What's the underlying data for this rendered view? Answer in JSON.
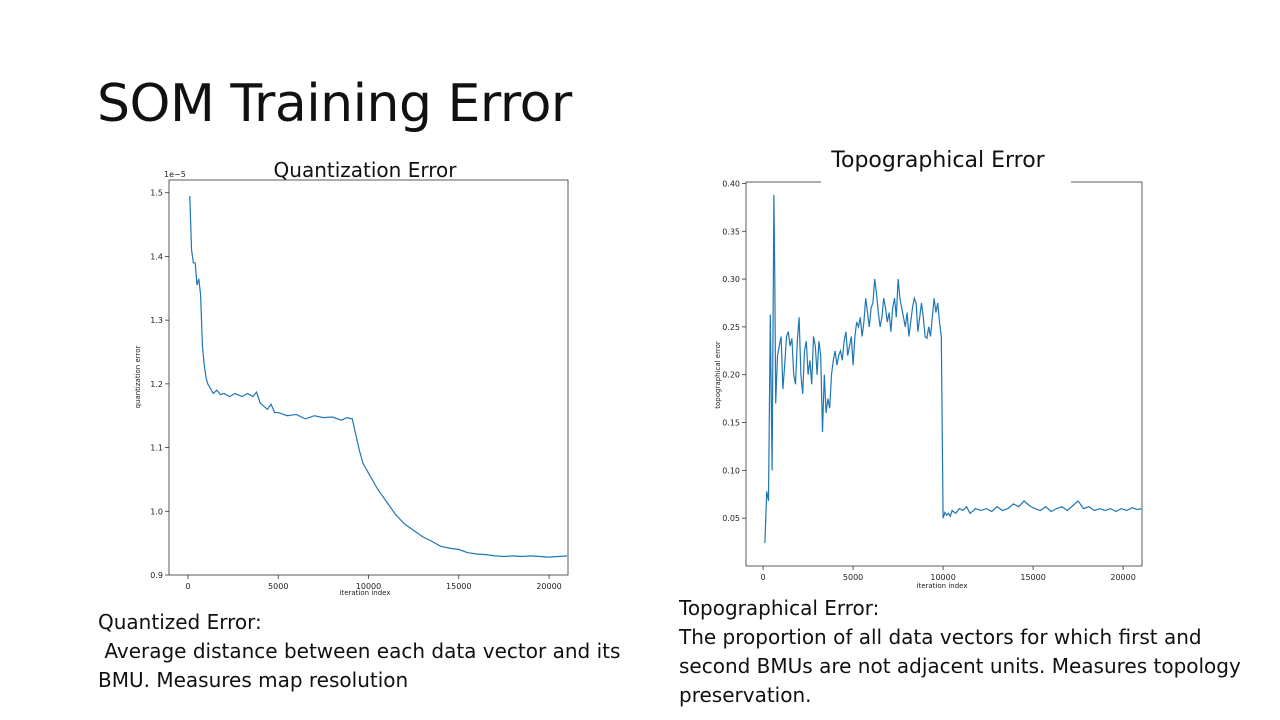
{
  "slide": {
    "title": "SOM Training Error"
  },
  "captions": {
    "left": {
      "heading": "Quantized Error:",
      "body": " Average distance between each data vector and its BMU. Measures map resolution"
    },
    "right": {
      "heading": "Topographical Error:",
      "body": "The proportion of all data vectors for which first and second BMUs are not adjacent units. Measures topology preservation."
    }
  },
  "chart_data": [
    {
      "type": "line",
      "title": "Quantization Error",
      "xlabel": "iteration index",
      "ylabel": "quantization error",
      "y_offset_label": "1e−5",
      "xlim": [
        -1050,
        21050
      ],
      "ylim": [
        0.9,
        1.52
      ],
      "xticks": [
        0,
        5000,
        10000,
        15000,
        20000
      ],
      "yticks": [
        0.9,
        1.0,
        1.1,
        1.2,
        1.3,
        1.4,
        1.5
      ],
      "ytick_labels": [
        "0.9",
        "1.0",
        "1.1",
        "1.2",
        "1.3",
        "1.4",
        "1.5"
      ],
      "grid": false,
      "line_color": "#1f77b4",
      "series": [
        {
          "x": [
            100,
            200,
            300,
            400,
            500,
            600,
            700,
            800,
            900,
            1000,
            1100,
            1200,
            1400,
            1600,
            1800,
            2000,
            2300,
            2600,
            3000,
            3300,
            3600,
            3800,
            4000,
            4200,
            4400,
            4600,
            4800,
            5000,
            5500,
            6000,
            6500,
            7000,
            7500,
            8000,
            8500,
            8800,
            9100,
            9300,
            9500,
            9700,
            10000,
            10500,
            11000,
            11500,
            12000,
            12500,
            13000,
            13500,
            14000,
            14500,
            15000,
            15500,
            16000,
            16500,
            17000,
            17500,
            18000,
            18500,
            19000,
            19500,
            20000,
            20500,
            21000
          ],
          "y": [
            1.495,
            1.41,
            1.39,
            1.39,
            1.355,
            1.365,
            1.34,
            1.26,
            1.23,
            1.21,
            1.2,
            1.195,
            1.185,
            1.19,
            1.183,
            1.185,
            1.18,
            1.185,
            1.18,
            1.185,
            1.18,
            1.187,
            1.17,
            1.165,
            1.16,
            1.168,
            1.155,
            1.155,
            1.15,
            1.152,
            1.145,
            1.15,
            1.147,
            1.148,
            1.143,
            1.147,
            1.145,
            1.12,
            1.095,
            1.075,
            1.06,
            1.035,
            1.015,
            0.995,
            0.98,
            0.97,
            0.96,
            0.953,
            0.945,
            0.942,
            0.94,
            0.935,
            0.933,
            0.932,
            0.93,
            0.929,
            0.93,
            0.929,
            0.93,
            0.929,
            0.928,
            0.929,
            0.93
          ]
        }
      ]
    },
    {
      "type": "line",
      "title": "Topographical Error",
      "xlabel": "iteration index",
      "ylabel": "topographical error",
      "xlim": [
        -950,
        21050
      ],
      "ylim": [
        0.0,
        0.4015
      ],
      "xticks": [
        0,
        5000,
        10000,
        15000,
        20000
      ],
      "yticks": [
        0.05,
        0.1,
        0.15,
        0.2,
        0.25,
        0.3,
        0.35,
        0.4
      ],
      "ytick_labels": [
        "0.05",
        "0.10",
        "0.15",
        "0.20",
        "0.25",
        "0.30",
        "0.35",
        "0.40"
      ],
      "grid": false,
      "line_color": "#1f77b4",
      "series": [
        {
          "x": [
            100,
            200,
            300,
            400,
            500,
            600,
            650,
            700,
            800,
            900,
            1000,
            1100,
            1200,
            1300,
            1400,
            1500,
            1600,
            1700,
            1800,
            1900,
            2000,
            2100,
            2200,
            2300,
            2400,
            2500,
            2600,
            2700,
            2800,
            2900,
            3000,
            3100,
            3200,
            3300,
            3400,
            3500,
            3600,
            3700,
            3800,
            3900,
            4000,
            4100,
            4200,
            4300,
            4400,
            4500,
            4600,
            4700,
            4800,
            4900,
            5000,
            5100,
            5200,
            5300,
            5400,
            5500,
            5600,
            5700,
            5800,
            5900,
            6000,
            6100,
            6200,
            6300,
            6400,
            6500,
            6600,
            6700,
            6800,
            6900,
            7000,
            7100,
            7200,
            7300,
            7400,
            7500,
            7600,
            7700,
            7800,
            7900,
            8000,
            8100,
            8200,
            8300,
            8400,
            8500,
            8600,
            8700,
            8800,
            8900,
            9000,
            9100,
            9200,
            9300,
            9400,
            9500,
            9600,
            9700,
            9800,
            9900,
            10000,
            10100,
            10200,
            10300,
            10400,
            10500,
            10700,
            10900,
            11100,
            11300,
            11500,
            11800,
            12100,
            12400,
            12700,
            13000,
            13300,
            13600,
            13900,
            14200,
            14500,
            14800,
            15100,
            15400,
            15700,
            16000,
            16300,
            16600,
            16900,
            17200,
            17500,
            17800,
            18100,
            18400,
            18700,
            19000,
            19300,
            19600,
            19900,
            20200,
            20500,
            20800,
            21000
          ],
          "y": [
            0.024,
            0.078,
            0.068,
            0.263,
            0.1,
            0.388,
            0.3,
            0.17,
            0.22,
            0.23,
            0.24,
            0.185,
            0.21,
            0.24,
            0.245,
            0.23,
            0.238,
            0.2,
            0.19,
            0.235,
            0.26,
            0.2,
            0.18,
            0.225,
            0.235,
            0.2,
            0.215,
            0.19,
            0.24,
            0.23,
            0.2,
            0.235,
            0.22,
            0.14,
            0.2,
            0.16,
            0.175,
            0.165,
            0.2,
            0.215,
            0.225,
            0.21,
            0.22,
            0.225,
            0.215,
            0.235,
            0.245,
            0.22,
            0.23,
            0.24,
            0.21,
            0.24,
            0.255,
            0.25,
            0.26,
            0.24,
            0.255,
            0.28,
            0.265,
            0.25,
            0.27,
            0.275,
            0.3,
            0.285,
            0.265,
            0.25,
            0.26,
            0.28,
            0.27,
            0.255,
            0.265,
            0.245,
            0.27,
            0.28,
            0.26,
            0.3,
            0.28,
            0.27,
            0.26,
            0.25,
            0.265,
            0.24,
            0.255,
            0.27,
            0.28,
            0.275,
            0.245,
            0.26,
            0.275,
            0.26,
            0.24,
            0.238,
            0.25,
            0.24,
            0.26,
            0.28,
            0.265,
            0.275,
            0.255,
            0.24,
            0.05,
            0.056,
            0.053,
            0.055,
            0.052,
            0.058,
            0.055,
            0.06,
            0.058,
            0.062,
            0.055,
            0.06,
            0.058,
            0.06,
            0.057,
            0.062,
            0.058,
            0.06,
            0.065,
            0.062,
            0.068,
            0.063,
            0.06,
            0.058,
            0.062,
            0.057,
            0.06,
            0.062,
            0.058,
            0.063,
            0.068,
            0.06,
            0.062,
            0.058,
            0.06,
            0.058,
            0.06,
            0.057,
            0.06,
            0.058,
            0.061,
            0.059,
            0.06
          ]
        }
      ]
    }
  ]
}
